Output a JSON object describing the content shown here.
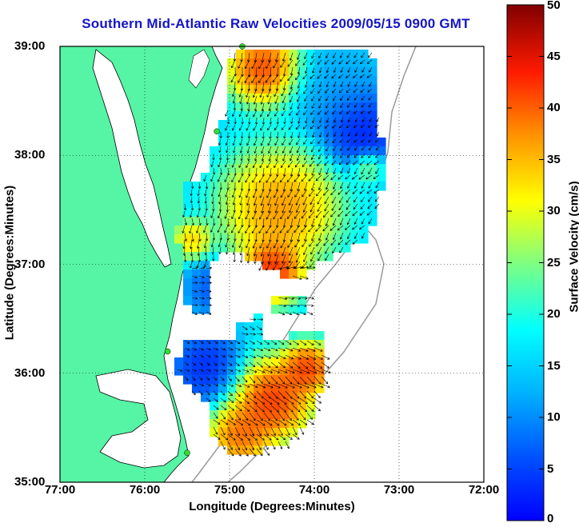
{
  "title": "Southern Mid-Atlantic Raw Velocities 2009/05/15 0900 GMT",
  "axes": {
    "xlabel": "Longitude (Degrees:Minutes)",
    "ylabel": "Latitude (Degrees:Minutes)",
    "xticks": [
      "77:00",
      "76:00",
      "75:00",
      "74:00",
      "73:00",
      "72:00"
    ],
    "yticks": [
      "39:00",
      "38:00",
      "37:00",
      "36:00",
      "35:00"
    ],
    "xlim": [
      -77,
      -72
    ],
    "ylim": [
      35,
      39
    ],
    "grid": "dotted"
  },
  "colorbar": {
    "label": "Surface Velocity (cm/s)",
    "ticks": [
      "0",
      "5",
      "10",
      "15",
      "20",
      "25",
      "30",
      "35",
      "40",
      "45",
      "50"
    ],
    "range": [
      0,
      50
    ],
    "colormap": "jet"
  },
  "colors": {
    "land": "#55f5a5",
    "coast": "#000000",
    "title": "#1515c8",
    "stations": "#33dd33"
  },
  "stations": [
    {
      "lon": -74.85,
      "lat": 39.0
    },
    {
      "lon": -75.15,
      "lat": 38.22
    },
    {
      "lon": -75.73,
      "lat": 36.2
    },
    {
      "lon": -75.5,
      "lat": 35.27
    }
  ]
}
